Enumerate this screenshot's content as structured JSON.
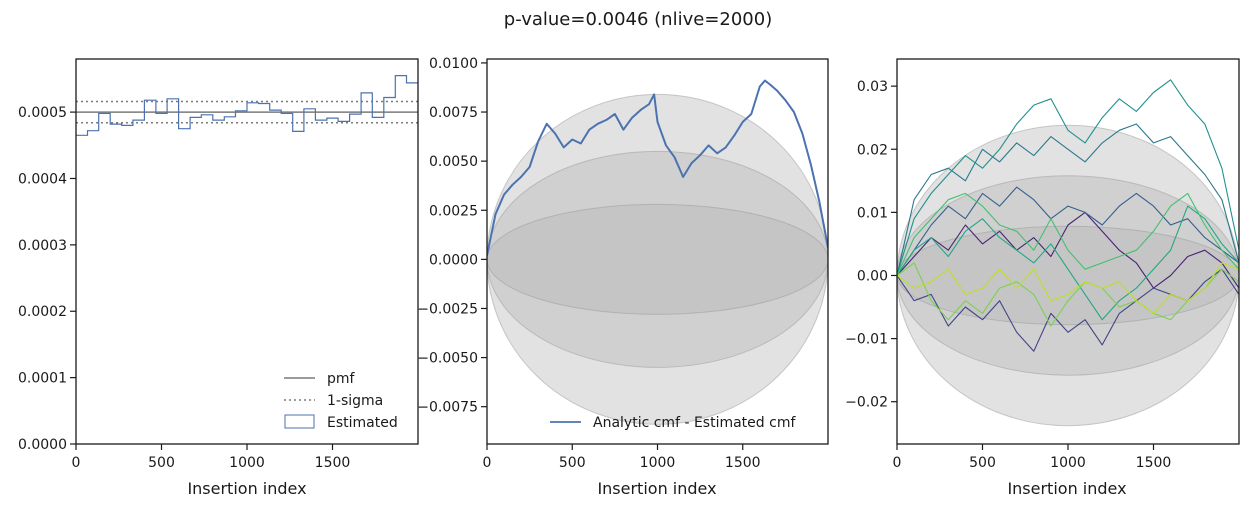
{
  "title": "p-value=0.0046 (nlive=2000)",
  "colors": {
    "pmf": "#7a7a7a",
    "estimated": "#4c72b0",
    "band": "#b4b4b4",
    "band_edge": "#9a9a9a",
    "viridis": [
      "#482475",
      "#414487",
      "#355f8d",
      "#2a788e",
      "#21918c",
      "#22a884",
      "#44bf70",
      "#7ad151",
      "#bddf26"
    ]
  },
  "chart_data": [
    {
      "type": "line",
      "xlabel": "Insertion index",
      "ylabel": "",
      "xlim": [
        0,
        2000
      ],
      "ylim": [
        0,
        0.00058
      ],
      "x_ticks": [
        0,
        500,
        1000,
        1500
      ],
      "x_tick_labels": [
        "0",
        "500",
        "1000",
        "1500"
      ],
      "y_ticks": [
        0,
        0.0001,
        0.0002,
        0.0003,
        0.0004,
        0.0005
      ],
      "y_tick_labels": [
        "0.0000",
        "0.0001",
        "0.0002",
        "0.0003",
        "0.0004",
        "0.0005"
      ],
      "pmf": 0.0005,
      "sigma_band": [
        0.000484,
        0.000516
      ],
      "histogram": {
        "bin_edges": [
          0,
          67,
          133,
          200,
          267,
          333,
          400,
          467,
          533,
          600,
          667,
          733,
          800,
          867,
          933,
          1000,
          1067,
          1133,
          1200,
          1267,
          1333,
          1400,
          1467,
          1533,
          1600,
          1667,
          1733,
          1800,
          1867,
          1933,
          2000
        ],
        "values": [
          0.000465,
          0.000472,
          0.000498,
          0.000482,
          0.00048,
          0.000488,
          0.000518,
          0.000498,
          0.00052,
          0.000475,
          0.000492,
          0.000496,
          0.000488,
          0.000493,
          0.000502,
          0.000514,
          0.000513,
          0.000503,
          0.000498,
          0.000471,
          0.000505,
          0.000488,
          0.000491,
          0.000486,
          0.000497,
          0.000529,
          0.000492,
          0.000522,
          0.000555,
          0.000544
        ]
      },
      "legend": {
        "location": "lower right",
        "entries": [
          "pmf",
          "1-sigma",
          "Estimated"
        ]
      }
    },
    {
      "type": "line",
      "xlabel": "Insertion index",
      "ylabel": "",
      "xlim": [
        0,
        2000
      ],
      "ylim": [
        -0.0094,
        0.0102
      ],
      "x_ticks": [
        0,
        500,
        1000,
        1500
      ],
      "x_tick_labels": [
        "0",
        "500",
        "1000",
        "1500"
      ],
      "y_ticks": [
        -0.0075,
        -0.005,
        -0.0025,
        0,
        0.0025,
        0.005,
        0.0075,
        0.01
      ],
      "y_tick_labels": [
        "−0.0075",
        "−0.0050",
        "−0.0025",
        "0.0000",
        "0.0025",
        "0.0050",
        "0.0075",
        "0.0100"
      ],
      "band_peaks": [
        0.0028,
        0.0055,
        0.0084
      ],
      "series": [
        {
          "name": "Analytic cmf - Estimated cmf",
          "x": [
            0,
            50,
            100,
            150,
            200,
            250,
            300,
            350,
            400,
            450,
            500,
            550,
            600,
            650,
            700,
            750,
            800,
            850,
            900,
            950,
            980,
            1000,
            1050,
            1100,
            1150,
            1200,
            1250,
            1300,
            1350,
            1400,
            1450,
            1500,
            1550,
            1600,
            1630,
            1660,
            1700,
            1750,
            1800,
            1850,
            1900,
            1950,
            2000
          ],
          "values": [
            0.0002,
            0.0023,
            0.0033,
            0.0038,
            0.0042,
            0.0047,
            0.006,
            0.0069,
            0.0064,
            0.0057,
            0.0061,
            0.0059,
            0.0066,
            0.0069,
            0.0071,
            0.0074,
            0.0066,
            0.0072,
            0.0076,
            0.0079,
            0.0084,
            0.007,
            0.0058,
            0.0052,
            0.0042,
            0.0049,
            0.0053,
            0.0058,
            0.0054,
            0.0057,
            0.0063,
            0.007,
            0.0074,
            0.0088,
            0.0091,
            0.0089,
            0.0086,
            0.0081,
            0.0075,
            0.0064,
            0.0048,
            0.0029,
            0.0006
          ]
        }
      ],
      "legend": {
        "location": "lower right",
        "entries": [
          "Analytic cmf - Estimated cmf"
        ]
      }
    },
    {
      "type": "line",
      "xlabel": "Insertion index",
      "ylabel": "",
      "xlim": [
        0,
        2000
      ],
      "ylim": [
        -0.0267,
        0.0343
      ],
      "x_ticks": [
        0,
        500,
        1000,
        1500
      ],
      "x_tick_labels": [
        "0",
        "500",
        "1000",
        "1500"
      ],
      "y_ticks": [
        -0.02,
        -0.01,
        0,
        0.01,
        0.02,
        0.03
      ],
      "y_tick_labels": [
        "−0.02",
        "−0.01",
        "0.00",
        "0.01",
        "0.02",
        "0.03"
      ],
      "band_peaks": [
        0.0078,
        0.0158,
        0.0238
      ],
      "x": [
        0,
        100,
        200,
        300,
        400,
        500,
        600,
        700,
        800,
        900,
        1000,
        1100,
        1200,
        1300,
        1400,
        1500,
        1600,
        1700,
        1800,
        1900,
        2000
      ],
      "series": [
        {
          "values": [
            0,
            0.003,
            0.006,
            0.004,
            0.008,
            0.005,
            0.007,
            0.004,
            0.006,
            0.003,
            0.008,
            0.01,
            0.007,
            0.004,
            0.002,
            -0.002,
            0,
            0.003,
            0.004,
            0.002,
            -0.002
          ]
        },
        {
          "values": [
            0,
            -0.004,
            -0.003,
            -0.008,
            -0.005,
            -0.007,
            -0.004,
            -0.009,
            -0.012,
            -0.006,
            -0.009,
            -0.007,
            -0.011,
            -0.006,
            -0.004,
            -0.002,
            -0.003,
            -0.004,
            -0.001,
            0.001,
            -0.003
          ]
        },
        {
          "values": [
            0,
            0.004,
            0.008,
            0.011,
            0.009,
            0.013,
            0.011,
            0.014,
            0.012,
            0.009,
            0.011,
            0.01,
            0.008,
            0.011,
            0.013,
            0.011,
            0.008,
            0.009,
            0.006,
            0.004,
            0.002
          ]
        },
        {
          "values": [
            0,
            0.012,
            0.016,
            0.017,
            0.015,
            0.02,
            0.018,
            0.021,
            0.019,
            0.022,
            0.02,
            0.018,
            0.021,
            0.023,
            0.024,
            0.021,
            0.022,
            0.019,
            0.016,
            0.012,
            0.002
          ]
        },
        {
          "values": [
            0,
            0.009,
            0.013,
            0.016,
            0.019,
            0.017,
            0.02,
            0.024,
            0.027,
            0.028,
            0.023,
            0.021,
            0.025,
            0.028,
            0.026,
            0.029,
            0.031,
            0.027,
            0.024,
            0.017,
            0.004
          ]
        },
        {
          "values": [
            0,
            0.004,
            0.006,
            0.003,
            0.007,
            0.009,
            0.006,
            0.004,
            0.002,
            0.005,
            0.001,
            -0.003,
            -0.007,
            -0.004,
            -0.002,
            0.001,
            0.004,
            0.011,
            0.009,
            0.005,
            0.002
          ]
        },
        {
          "values": [
            0,
            0.006,
            0.009,
            0.012,
            0.013,
            0.011,
            0.008,
            0.007,
            0.004,
            0.009,
            0.004,
            0.001,
            0.002,
            0.003,
            0.004,
            0.007,
            0.011,
            0.013,
            0.008,
            0.004,
            0.001
          ]
        },
        {
          "values": [
            0,
            0.002,
            -0.004,
            -0.007,
            -0.004,
            -0.006,
            -0.002,
            -0.001,
            -0.003,
            -0.008,
            -0.004,
            -0.001,
            -0.002,
            -0.005,
            -0.004,
            -0.006,
            -0.007,
            -0.004,
            -0.002,
            0.001,
            -0.001
          ]
        },
        {
          "values": [
            0,
            -0.002,
            -0.001,
            0.001,
            -0.003,
            -0.002,
            0.001,
            -0.002,
            0.001,
            -0.004,
            -0.003,
            -0.001,
            -0.002,
            -0.001,
            -0.004,
            -0.006,
            -0.003,
            -0.004,
            -0.002,
            0.002,
            0.001
          ]
        }
      ]
    }
  ]
}
